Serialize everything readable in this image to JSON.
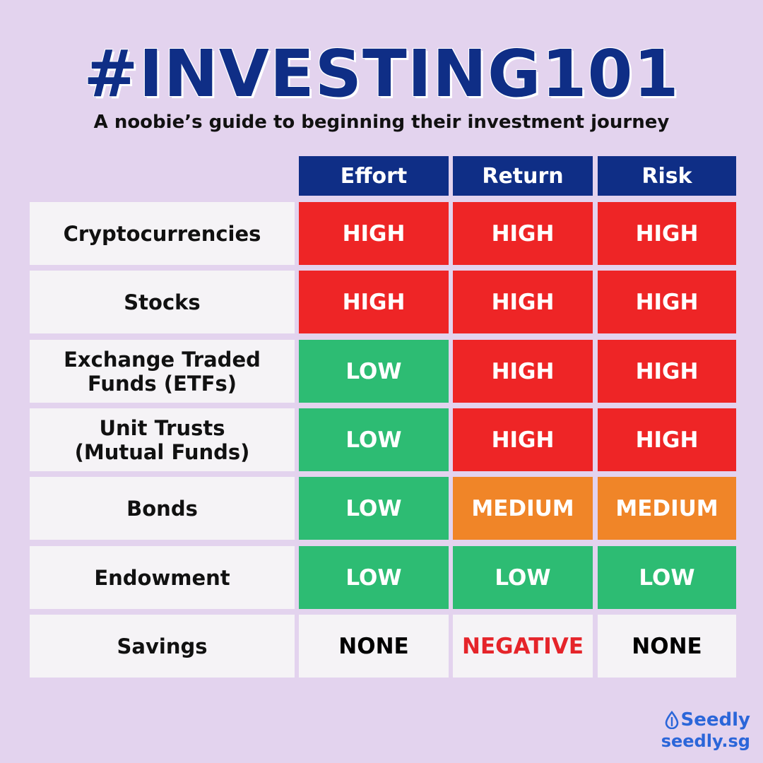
{
  "title": "#INVESTING101",
  "subtitle": "A noobie’s guide to beginning their investment journey",
  "columns": [
    "Effort",
    "Return",
    "Risk"
  ],
  "rows": [
    {
      "label": "Cryptocurrencies",
      "values": [
        "HIGH",
        "HIGH",
        "HIGH"
      ],
      "levels": [
        "high",
        "high",
        "high"
      ]
    },
    {
      "label": "Stocks",
      "values": [
        "HIGH",
        "HIGH",
        "HIGH"
      ],
      "levels": [
        "high",
        "high",
        "high"
      ]
    },
    {
      "label": "Exchange Traded Funds (ETFs)",
      "values": [
        "LOW",
        "HIGH",
        "HIGH"
      ],
      "levels": [
        "low",
        "high",
        "high"
      ]
    },
    {
      "label": "Unit Trusts (Mutual Funds)",
      "values": [
        "LOW",
        "HIGH",
        "HIGH"
      ],
      "levels": [
        "low",
        "high",
        "high"
      ]
    },
    {
      "label": "Bonds",
      "values": [
        "LOW",
        "MEDIUM",
        "MEDIUM"
      ],
      "levels": [
        "low",
        "medium",
        "medium"
      ]
    },
    {
      "label": "Endowment",
      "values": [
        "LOW",
        "LOW",
        "LOW"
      ],
      "levels": [
        "low",
        "low",
        "low"
      ]
    },
    {
      "label": "Savings",
      "values": [
        "NONE",
        "NEGATIVE",
        "NONE"
      ],
      "levels": [
        "none",
        "negative",
        "none"
      ]
    }
  ],
  "colors": {
    "background": "#e3d3ee",
    "header": "#0f2e86",
    "high": "#ee2526",
    "low": "#2dbc73",
    "medium": "#f08528",
    "negative_text": "#e5242a",
    "brand": "#2b66d9"
  },
  "brand": {
    "name": "Seedly",
    "url": "seedly.sg",
    "icon": "water-drop-icon"
  }
}
